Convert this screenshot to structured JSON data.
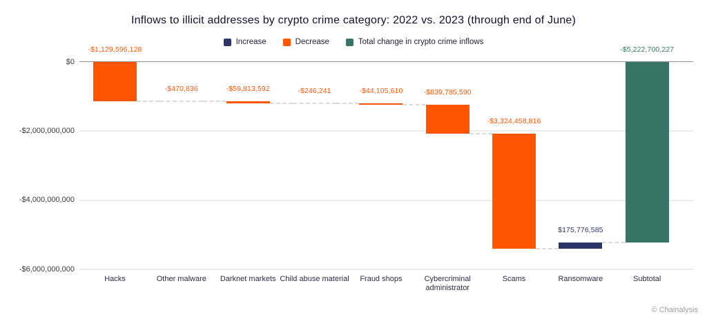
{
  "title": "Inflows to illicit addresses by crypto crime category: 2022 vs. 2023 (through end of June)",
  "legend": [
    {
      "key": "increase",
      "label": "Increase",
      "color": "#2b3567"
    },
    {
      "key": "decrease",
      "label": "Decrease",
      "color": "#ff5500"
    },
    {
      "key": "total",
      "label": "Total change in crypto crime inflows",
      "color": "#377466"
    }
  ],
  "footer": "© Chainalysis",
  "chart_data": {
    "type": "bar",
    "subtype": "waterfall",
    "title": "Inflows to illicit addresses by crypto crime category: 2022 vs. 2023 (through end of June)",
    "categories": [
      "Hacks",
      "Other malware",
      "Darknet markets",
      "Child abuse material",
      "Fraud shops",
      "Cybercriminal administrator",
      "Scams",
      "Ransomware",
      "Subtotal"
    ],
    "values": [
      -1129596128,
      -470836,
      -59813592,
      -246241,
      -44105610,
      -839785590,
      -3324458816,
      175776585,
      -5222700227
    ],
    "value_labels": [
      "-$1,129,596,128",
      "-$470,836",
      "-$59,813,592",
      "-$246,241",
      "-$44,105,610",
      "-$839,785,590",
      "-$3,324,458,816",
      "$175,776,585",
      "-$5,222,700,227"
    ],
    "bar_types": [
      "decrease",
      "decrease",
      "decrease",
      "decrease",
      "decrease",
      "decrease",
      "decrease",
      "increase",
      "total"
    ],
    "cumulative": [
      -1129596128,
      -1130066964,
      -1189880556,
      -1190126797,
      -1234232407,
      -2074017997,
      -5398476813,
      -5222700228,
      -5222700227
    ],
    "y_ticks": [
      {
        "label": "$0",
        "value": 0
      },
      {
        "label": "-$2,000,000,000",
        "value": -2000000000
      },
      {
        "label": "-$4,000,000,000",
        "value": -4000000000
      },
      {
        "label": "-$6,000,000,000",
        "value": -6000000000
      }
    ],
    "ylim": [
      -6000000000,
      0
    ],
    "xlabel": "",
    "ylabel": "",
    "grid": true,
    "legend_position": "top-center",
    "colors": {
      "increase": "#2b3567",
      "decrease": "#ff5500",
      "total": "#377466"
    }
  }
}
